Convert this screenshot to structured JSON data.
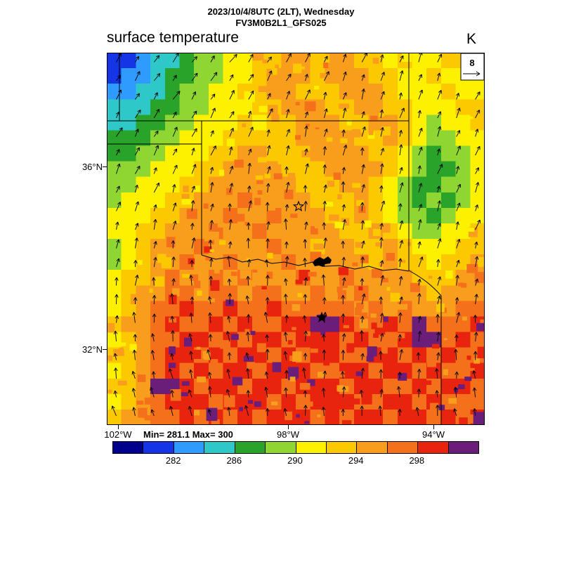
{
  "header": {
    "datetime_line": "2023/10/4/8UTC (2LT), Wednesday",
    "model_line": "FV3M0B2L1_GFS025",
    "variable_title": "surface temperature",
    "units": "K"
  },
  "wind_reference": {
    "value": "8"
  },
  "axes": {
    "lat_labels": [
      "36°N",
      "32°N"
    ],
    "lon_labels": [
      "102°W",
      "98°W",
      "94°W"
    ]
  },
  "stats": {
    "min_max_label": "Min= 281.1 Max= 300",
    "min": 281.1,
    "max": 300
  },
  "colorbar": {
    "levels": [
      278,
      280,
      282,
      284,
      286,
      288,
      290,
      292,
      294,
      296,
      298,
      300
    ],
    "colors": [
      "#00008c",
      "#1434e6",
      "#2f9bff",
      "#2fc8c8",
      "#2aa32a",
      "#8fd633",
      "#fdf100",
      "#fcc800",
      "#f99d1c",
      "#f4701a",
      "#e8240f",
      "#6b1d7a"
    ],
    "tick_labels": [
      "282",
      "286",
      "290",
      "294",
      "298"
    ],
    "tick_level_indices": [
      2,
      4,
      6,
      8,
      10
    ]
  },
  "chart_data": {
    "type": "heatmap",
    "title": "surface temperature",
    "units": "K",
    "lon_range_degW": [
      102.3,
      93.5
    ],
    "lat_range_degN": [
      30.3,
      38.5
    ],
    "min": 281.1,
    "max": 300,
    "contour_interval": 2,
    "grid_cols": 26,
    "grid_rows": 24,
    "values_K": [
      [
        281,
        281,
        283,
        285,
        285,
        287,
        289,
        289,
        291,
        291,
        293,
        293,
        295,
        295,
        293,
        295,
        295,
        293,
        293,
        291,
        293,
        291,
        291,
        293,
        293,
        291
      ],
      [
        281,
        283,
        283,
        285,
        287,
        287,
        289,
        289,
        291,
        291,
        293,
        295,
        295,
        295,
        293,
        295,
        295,
        295,
        293,
        293,
        291,
        291,
        293,
        291,
        291,
        291
      ],
      [
        283,
        283,
        285,
        285,
        287,
        289,
        289,
        291,
        291,
        293,
        293,
        295,
        295,
        293,
        293,
        293,
        295,
        295,
        295,
        293,
        291,
        291,
        291,
        293,
        291,
        291
      ],
      [
        285,
        285,
        285,
        287,
        287,
        289,
        289,
        291,
        291,
        291,
        293,
        293,
        295,
        295,
        295,
        293,
        293,
        295,
        295,
        293,
        293,
        291,
        291,
        291,
        293,
        293
      ],
      [
        285,
        285,
        287,
        287,
        289,
        289,
        291,
        291,
        291,
        293,
        291,
        293,
        293,
        295,
        295,
        295,
        293,
        293,
        295,
        295,
        293,
        291,
        289,
        291,
        291,
        293
      ],
      [
        287,
        287,
        287,
        289,
        289,
        291,
        291,
        291,
        293,
        293,
        293,
        293,
        293,
        295,
        295,
        295,
        295,
        293,
        293,
        295,
        293,
        291,
        289,
        289,
        291,
        291
      ],
      [
        287,
        287,
        289,
        289,
        291,
        291,
        291,
        293,
        293,
        295,
        295,
        293,
        293,
        293,
        295,
        295,
        295,
        295,
        293,
        293,
        291,
        289,
        287,
        289,
        289,
        291
      ],
      [
        289,
        289,
        289,
        291,
        291,
        291,
        293,
        293,
        295,
        295,
        295,
        295,
        293,
        293,
        293,
        295,
        295,
        295,
        295,
        293,
        291,
        289,
        287,
        287,
        289,
        291
      ],
      [
        289,
        289,
        291,
        291,
        291,
        293,
        293,
        295,
        295,
        295,
        295,
        295,
        295,
        293,
        293,
        293,
        295,
        295,
        293,
        291,
        289,
        287,
        287,
        289,
        289,
        291
      ],
      [
        289,
        291,
        291,
        291,
        293,
        293,
        295,
        295,
        295,
        297,
        295,
        295,
        295,
        295,
        293,
        293,
        293,
        295,
        293,
        291,
        289,
        287,
        289,
        287,
        289,
        291
      ],
      [
        291,
        291,
        291,
        293,
        293,
        295,
        295,
        295,
        297,
        295,
        295,
        297,
        295,
        295,
        295,
        293,
        293,
        295,
        293,
        291,
        289,
        289,
        287,
        289,
        291,
        291
      ],
      [
        291,
        291,
        293,
        293,
        295,
        295,
        295,
        297,
        295,
        295,
        297,
        295,
        295,
        295,
        295,
        295,
        293,
        293,
        295,
        293,
        291,
        289,
        289,
        291,
        291,
        293
      ],
      [
        289,
        291,
        293,
        295,
        295,
        295,
        297,
        295,
        295,
        295,
        295,
        297,
        295,
        295,
        293,
        295,
        295,
        293,
        293,
        295,
        293,
        291,
        291,
        291,
        293,
        293
      ],
      [
        289,
        291,
        293,
        295,
        295,
        297,
        295,
        295,
        297,
        295,
        295,
        295,
        297,
        295,
        295,
        295,
        295,
        295,
        293,
        295,
        293,
        293,
        291,
        293,
        293,
        295
      ],
      [
        291,
        293,
        293,
        295,
        297,
        295,
        295,
        297,
        295,
        297,
        295,
        295,
        295,
        297,
        295,
        295,
        297,
        295,
        295,
        295,
        295,
        293,
        293,
        293,
        295,
        295
      ],
      [
        291,
        293,
        295,
        295,
        297,
        297,
        295,
        297,
        297,
        295,
        297,
        297,
        295,
        295,
        297,
        295,
        295,
        297,
        295,
        295,
        295,
        295,
        293,
        295,
        295,
        295
      ],
      [
        291,
        293,
        295,
        297,
        297,
        299,
        297,
        297,
        299,
        297,
        297,
        299,
        297,
        297,
        297,
        297,
        297,
        295,
        297,
        295,
        297,
        295,
        295,
        295,
        297,
        297
      ],
      [
        293,
        295,
        295,
        297,
        299,
        297,
        297,
        299,
        297,
        299,
        297,
        297,
        299,
        299,
        300,
        300,
        299,
        297,
        297,
        299,
        297,
        300,
        297,
        297,
        297,
        299
      ],
      [
        291,
        293,
        295,
        297,
        297,
        299,
        299,
        297,
        299,
        297,
        299,
        299,
        297,
        299,
        299,
        299,
        297,
        299,
        297,
        297,
        299,
        300,
        300,
        297,
        299,
        297
      ],
      [
        293,
        293,
        295,
        297,
        299,
        299,
        297,
        299,
        297,
        299,
        299,
        297,
        299,
        297,
        299,
        299,
        297,
        297,
        299,
        299,
        297,
        299,
        297,
        299,
        297,
        297
      ],
      [
        291,
        293,
        295,
        297,
        299,
        297,
        299,
        297,
        299,
        299,
        297,
        299,
        299,
        299,
        297,
        297,
        299,
        299,
        297,
        299,
        299,
        297,
        299,
        297,
        297,
        299
      ],
      [
        293,
        293,
        295,
        300,
        300,
        299,
        297,
        299,
        299,
        297,
        299,
        299,
        297,
        299,
        299,
        299,
        297,
        299,
        299,
        297,
        297,
        299,
        297,
        299,
        299,
        297
      ],
      [
        291,
        293,
        295,
        297,
        299,
        299,
        299,
        297,
        299,
        299,
        299,
        297,
        299,
        297,
        299,
        299,
        299,
        297,
        297,
        299,
        299,
        297,
        299,
        297,
        297,
        297
      ],
      [
        293,
        295,
        295,
        297,
        297,
        299,
        297,
        299,
        297,
        299,
        297,
        299,
        299,
        299,
        297,
        299,
        297,
        299,
        299,
        297,
        299,
        299,
        297,
        299,
        297,
        299
      ]
    ],
    "wind": {
      "reference_label": "8",
      "vector_grid": [
        20,
        20
      ]
    }
  }
}
